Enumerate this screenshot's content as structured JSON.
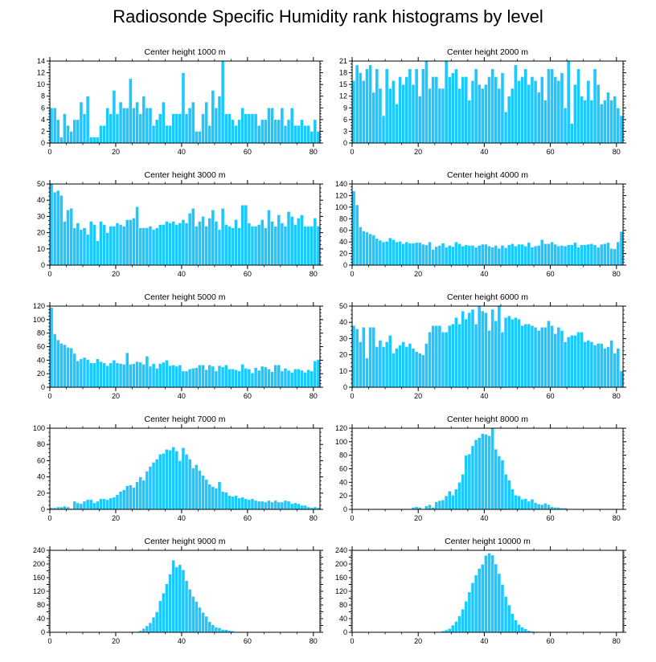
{
  "page": {
    "title": "Radiosonde Specific Humidity rank histograms by level"
  },
  "colors": {
    "bar_fill": "#1ec8ff",
    "bar_stroke": "#ffffff",
    "axis": "#000000",
    "background": "#ffffff"
  },
  "chart_data": [
    {
      "type": "bar",
      "title": "Center height 1000 m",
      "xlim": [
        0,
        82
      ],
      "ylim": [
        0,
        14
      ],
      "xticks": [
        0,
        20,
        40,
        60,
        80
      ],
      "yticks": [
        0,
        2,
        4,
        6,
        8,
        10,
        12,
        14
      ],
      "values": [
        6,
        6,
        4,
        1,
        5,
        3,
        2,
        4,
        4,
        7,
        5,
        8,
        1,
        1,
        1,
        3,
        3,
        6,
        5,
        9,
        5,
        7,
        6,
        6,
        11,
        6,
        7,
        5,
        8,
        6,
        6,
        3,
        4,
        5,
        7,
        3,
        3,
        5,
        5,
        5,
        12,
        5,
        6,
        7,
        2,
        2,
        5,
        7,
        3,
        9,
        6,
        8,
        14,
        5,
        5,
        4,
        3,
        4,
        6,
        5,
        5,
        5,
        5,
        3,
        4,
        4,
        6,
        6,
        4,
        4,
        6,
        3,
        4,
        6,
        3,
        3,
        4,
        3,
        3,
        2,
        4,
        2
      ]
    },
    {
      "type": "bar",
      "title": "Center height 2000 m",
      "xlim": [
        0,
        82
      ],
      "ylim": [
        0,
        21
      ],
      "xticks": [
        0,
        20,
        40,
        60,
        80
      ],
      "yticks": [
        0,
        3,
        6,
        9,
        12,
        15,
        18,
        21
      ],
      "values": [
        16,
        20,
        18,
        16,
        19,
        20,
        13,
        19,
        14,
        7,
        19,
        14,
        16,
        10,
        17,
        15,
        17,
        19,
        15,
        19,
        12,
        19,
        21,
        14,
        17,
        17,
        14,
        14,
        21,
        17,
        18,
        19,
        14,
        17,
        17,
        11,
        16,
        19,
        15,
        14,
        15,
        17,
        19,
        17,
        14,
        18,
        8,
        12,
        14,
        20,
        16,
        17,
        19,
        15,
        17,
        16,
        13,
        17,
        11,
        19,
        19,
        17,
        16,
        18,
        9,
        21,
        5,
        15,
        19,
        12,
        11,
        16,
        11,
        19,
        15,
        10,
        11,
        13,
        11,
        12,
        9,
        7
      ]
    },
    {
      "type": "bar",
      "title": "Center height 3000 m",
      "xlim": [
        0,
        82
      ],
      "ylim": [
        0,
        50
      ],
      "xticks": [
        0,
        20,
        40,
        60,
        80
      ],
      "yticks": [
        0,
        10,
        20,
        30,
        40,
        50
      ],
      "values": [
        50,
        45,
        46,
        43,
        27,
        34,
        35,
        23,
        26,
        22,
        23,
        19,
        27,
        25,
        15,
        27,
        25,
        20,
        24,
        24,
        26,
        25,
        24,
        28,
        28,
        29,
        36,
        23,
        23,
        23,
        24,
        22,
        23,
        25,
        25,
        27,
        26,
        27,
        25,
        26,
        28,
        26,
        32,
        35,
        24,
        27,
        30,
        24,
        29,
        34,
        27,
        22,
        35,
        25,
        24,
        23,
        28,
        23,
        37,
        37,
        26,
        24,
        24,
        25,
        28,
        23,
        34,
        27,
        24,
        31,
        26,
        24,
        33,
        30,
        25,
        29,
        31,
        24,
        24,
        24,
        29,
        24
      ]
    },
    {
      "type": "bar",
      "title": "Center height 4000 m",
      "xlim": [
        0,
        82
      ],
      "ylim": [
        0,
        140
      ],
      "xticks": [
        0,
        20,
        40,
        60,
        80
      ],
      "yticks": [
        0,
        20,
        40,
        60,
        80,
        100,
        120,
        140
      ],
      "values": [
        128,
        104,
        66,
        59,
        57,
        54,
        52,
        46,
        43,
        40,
        41,
        47,
        44,
        40,
        41,
        37,
        40,
        38,
        38,
        39,
        39,
        36,
        35,
        40,
        27,
        32,
        34,
        38,
        31,
        34,
        32,
        40,
        37,
        33,
        35,
        34,
        34,
        31,
        34,
        36,
        36,
        33,
        31,
        34,
        29,
        34,
        30,
        35,
        37,
        33,
        36,
        36,
        33,
        39,
        31,
        33,
        34,
        44,
        37,
        37,
        40,
        36,
        33,
        34,
        33,
        35,
        35,
        39,
        31,
        35,
        35,
        36,
        37,
        35,
        31,
        36,
        37,
        39,
        29,
        28,
        40,
        58
      ]
    },
    {
      "type": "bar",
      "title": "Center height 5000 m",
      "xlim": [
        0,
        82
      ],
      "ylim": [
        0,
        120
      ],
      "xticks": [
        0,
        20,
        40,
        60,
        80
      ],
      "yticks": [
        0,
        20,
        40,
        60,
        80,
        100,
        120
      ],
      "values": [
        118,
        79,
        70,
        65,
        63,
        59,
        58,
        50,
        39,
        42,
        44,
        41,
        36,
        36,
        42,
        38,
        36,
        32,
        36,
        40,
        36,
        35,
        34,
        51,
        34,
        35,
        38,
        37,
        34,
        46,
        31,
        35,
        28,
        35,
        37,
        40,
        32,
        33,
        31,
        33,
        24,
        24,
        27,
        28,
        29,
        33,
        33,
        26,
        33,
        31,
        24,
        32,
        30,
        33,
        27,
        27,
        26,
        24,
        34,
        28,
        27,
        21,
        29,
        25,
        31,
        30,
        27,
        23,
        33,
        33,
        24,
        28,
        25,
        22,
        27,
        27,
        25,
        22,
        26,
        24,
        39,
        41
      ]
    },
    {
      "type": "bar",
      "title": "Center height 6000 m",
      "xlim": [
        0,
        82
      ],
      "ylim": [
        0,
        50
      ],
      "xticks": [
        0,
        20,
        40,
        60,
        80
      ],
      "yticks": [
        0,
        10,
        20,
        30,
        40,
        50
      ],
      "values": [
        38,
        36,
        28,
        37,
        18,
        37,
        37,
        25,
        29,
        25,
        28,
        32,
        21,
        24,
        26,
        28,
        25,
        27,
        24,
        22,
        21,
        20,
        27,
        34,
        38,
        38,
        38,
        34,
        34,
        38,
        39,
        43,
        39,
        47,
        42,
        46,
        48,
        39,
        50,
        47,
        46,
        35,
        48,
        41,
        50,
        34,
        43,
        44,
        42,
        43,
        42,
        38,
        39,
        39,
        38,
        37,
        35,
        37,
        37,
        41,
        38,
        33,
        37,
        35,
        28,
        31,
        32,
        32,
        34,
        34,
        28,
        29,
        28,
        26,
        27,
        27,
        24,
        25,
        29,
        21,
        24,
        10
      ]
    },
    {
      "type": "bar",
      "title": "Center height 7000 m",
      "xlim": [
        0,
        82
      ],
      "ylim": [
        0,
        100
      ],
      "xticks": [
        0,
        20,
        40,
        60,
        80
      ],
      "yticks": [
        0,
        20,
        40,
        60,
        80,
        100
      ],
      "values": [
        2,
        2,
        3,
        3,
        4,
        3,
        1,
        10,
        8,
        7,
        10,
        12,
        12,
        8,
        10,
        13,
        13,
        12,
        14,
        15,
        18,
        22,
        24,
        29,
        30,
        27,
        34,
        40,
        36,
        47,
        53,
        58,
        62,
        68,
        69,
        74,
        73,
        77,
        72,
        60,
        76,
        68,
        62,
        51,
        55,
        48,
        42,
        37,
        31,
        28,
        26,
        34,
        22,
        21,
        17,
        16,
        17,
        14,
        15,
        13,
        12,
        13,
        11,
        10,
        10,
        9,
        11,
        9,
        11,
        9,
        9,
        11,
        10,
        7,
        8,
        7,
        5,
        5,
        3,
        2,
        3,
        2
      ]
    },
    {
      "type": "bar",
      "title": "Center height 8000 m",
      "xlim": [
        0,
        82
      ],
      "ylim": [
        0,
        120
      ],
      "xticks": [
        0,
        20,
        40,
        60,
        80
      ],
      "yticks": [
        0,
        20,
        40,
        60,
        80,
        100,
        120
      ],
      "values": [
        0,
        0,
        0,
        0,
        0,
        0,
        0,
        0,
        0,
        0,
        0,
        0,
        0,
        0,
        0,
        0,
        0,
        0,
        3,
        4,
        3,
        0,
        5,
        7,
        3,
        11,
        13,
        14,
        20,
        27,
        21,
        30,
        40,
        52,
        80,
        82,
        94,
        103,
        106,
        112,
        111,
        109,
        121,
        89,
        79,
        73,
        52,
        43,
        30,
        21,
        20,
        15,
        16,
        12,
        15,
        10,
        8,
        7,
        9,
        7,
        4,
        3,
        3,
        2,
        2,
        1,
        0,
        0,
        0,
        0,
        0,
        0,
        0,
        0,
        0,
        0,
        0,
        0,
        0,
        0,
        0,
        0
      ]
    },
    {
      "type": "bar",
      "title": "Center height 9000 m",
      "xlim": [
        0,
        82
      ],
      "ylim": [
        0,
        240
      ],
      "xticks": [
        0,
        20,
        40,
        60,
        80
      ],
      "yticks": [
        0,
        20,
        40,
        60,
        80,
        100,
        120,
        140,
        160,
        180,
        200,
        220,
        240
      ],
      "ytick_labels": [
        "0",
        "",
        "40",
        "",
        "80",
        "",
        "120",
        "",
        "160",
        "",
        "200",
        "",
        "240"
      ],
      "values": [
        0,
        0,
        0,
        0,
        0,
        0,
        0,
        0,
        0,
        0,
        0,
        0,
        0,
        0,
        0,
        0,
        0,
        0,
        0,
        0,
        0,
        0,
        0,
        0,
        0,
        2,
        2,
        5,
        11,
        19,
        28,
        44,
        60,
        92,
        115,
        142,
        170,
        211,
        191,
        198,
        183,
        151,
        126,
        105,
        90,
        73,
        58,
        47,
        31,
        22,
        15,
        13,
        8,
        8,
        5,
        4,
        2,
        1,
        1,
        0,
        0,
        0,
        0,
        0,
        0,
        0,
        0,
        0,
        0,
        0,
        0,
        0,
        0,
        0,
        0,
        0,
        0,
        0,
        0,
        0,
        0,
        0
      ]
    },
    {
      "type": "bar",
      "title": "Center height 10000 m",
      "xlim": [
        0,
        82
      ],
      "ylim": [
        0,
        240
      ],
      "xticks": [
        0,
        20,
        40,
        60,
        80
      ],
      "yticks": [
        0,
        20,
        40,
        60,
        80,
        100,
        120,
        140,
        160,
        180,
        200,
        220,
        240
      ],
      "ytick_labels": [
        "0",
        "",
        "40",
        "",
        "80",
        "",
        "120",
        "",
        "160",
        "",
        "200",
        "",
        "240"
      ],
      "values": [
        0,
        0,
        0,
        0,
        0,
        0,
        0,
        0,
        0,
        0,
        0,
        0,
        0,
        0,
        0,
        0,
        0,
        0,
        0,
        0,
        0,
        0,
        0,
        0,
        0,
        1,
        2,
        4,
        7,
        11,
        21,
        32,
        48,
        68,
        91,
        118,
        145,
        168,
        187,
        199,
        225,
        232,
        226,
        200,
        172,
        140,
        105,
        80,
        55,
        36,
        23,
        15,
        10,
        5,
        3,
        2,
        1,
        0,
        0,
        0,
        0,
        0,
        0,
        0,
        0,
        0,
        0,
        0,
        0,
        0,
        0,
        0,
        0,
        0,
        0,
        0,
        0,
        0
      ]
    }
  ]
}
